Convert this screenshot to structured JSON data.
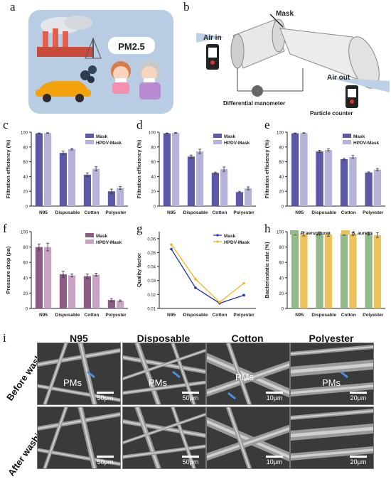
{
  "panel_labels": {
    "a": "a",
    "b": "b",
    "c": "c",
    "d": "d",
    "e": "e",
    "f": "f",
    "g": "g",
    "h": "h",
    "i": "i"
  },
  "panel_a": {
    "pm_text": "PM2.5"
  },
  "panel_b": {
    "mask": "Mask",
    "air_in": "Air in",
    "air_out": "Air out",
    "manometer": "Differential manometer",
    "counter": "Particle counter"
  },
  "categories": [
    "N95",
    "Disposable",
    "Cotton",
    "Polyester"
  ],
  "colors": {
    "mask": "#5b58a8",
    "hpdv": "#b6b3db",
    "pd_mask": "#8e5a86",
    "pd_hpdv": "#c9a3c4",
    "qf_mask": "#1f2fb0",
    "qf_hpdv": "#f2b71c",
    "pa": "#93b88a",
    "sa": "#eec25a"
  },
  "chart_data": [
    {
      "id": "c",
      "type": "bar",
      "ylabel": "Filtration efficiency  (%)",
      "ylim": [
        0,
        100
      ],
      "yticks": [
        0,
        20,
        40,
        60,
        80,
        100
      ],
      "categories": [
        "N95",
        "Disposable",
        "Cotton",
        "Polyester"
      ],
      "series": [
        {
          "name": "Mask",
          "values": [
            98.5,
            72,
            42.5,
            20
          ]
        },
        {
          "name": "HPDV-Mask",
          "values": [
            98.8,
            77,
            50.5,
            24.5
          ]
        }
      ],
      "errors": [
        [
          0.4,
          2.5,
          2.5,
          3
        ],
        [
          0.4,
          1,
          3,
          2
        ]
      ]
    },
    {
      "id": "d",
      "type": "bar",
      "ylabel": "Filtration efficiency  (%)",
      "ylim": [
        0,
        100
      ],
      "yticks": [
        0,
        20,
        40,
        60,
        80,
        100
      ],
      "categories": [
        "N95",
        "Disposable",
        "Cotton",
        "Polyester"
      ],
      "series": [
        {
          "name": "Mask",
          "values": [
            98.5,
            67,
            45,
            19
          ]
        },
        {
          "name": "HPDV-Mask",
          "values": [
            99,
            74,
            50,
            24
          ]
        }
      ],
      "errors": [
        [
          0.4,
          2,
          1,
          1
        ],
        [
          0.4,
          3,
          3,
          2
        ]
      ]
    },
    {
      "id": "e",
      "type": "bar",
      "ylabel": "Filtration efficiency  (%)",
      "ylim": [
        0,
        100
      ],
      "yticks": [
        0,
        20,
        40,
        60,
        80,
        100
      ],
      "categories": [
        "N95",
        "Disposable",
        "Cotton",
        "Polyester"
      ],
      "series": [
        {
          "name": "Mask",
          "values": [
            98.5,
            74,
            63.5,
            45.5
          ]
        },
        {
          "name": "HPDV-Mask",
          "values": [
            98.8,
            76,
            66.5,
            49.5
          ]
        }
      ],
      "errors": [
        [
          0.4,
          1.5,
          1,
          0.8
        ],
        [
          0.4,
          1.5,
          2,
          1.5
        ]
      ]
    },
    {
      "id": "f",
      "type": "bar",
      "ylabel": "Pressure drop  (pa)",
      "ylim": [
        0,
        100
      ],
      "yticks": [
        0,
        20,
        40,
        60,
        80,
        100
      ],
      "categories": [
        "N95",
        "Disposable",
        "Cotton",
        "Polyester"
      ],
      "series": [
        {
          "name": "Mask",
          "values": [
            80,
            44.5,
            42,
            11
          ]
        },
        {
          "name": "HPDV-Mask",
          "values": [
            80,
            43,
            44,
            10
          ]
        }
      ],
      "errors": [
        [
          4,
          4,
          3,
          2
        ],
        [
          5,
          2,
          2,
          1
        ]
      ]
    },
    {
      "id": "g",
      "type": "line",
      "ylabel": "Quality factor",
      "ylim": [
        0.01,
        0.065
      ],
      "yticks": [
        0.01,
        0.02,
        0.03,
        0.04,
        0.05,
        0.06
      ],
      "categories": [
        "N95",
        "Disposable",
        "Cotton",
        "Polyester"
      ],
      "series": [
        {
          "name": "Mask",
          "values": [
            0.0525,
            0.0248,
            0.0137,
            0.0195
          ]
        },
        {
          "name": "HPDV-Mask",
          "values": [
            0.0558,
            0.031,
            0.0145,
            0.028
          ]
        }
      ]
    },
    {
      "id": "h",
      "type": "bar",
      "ylabel": "Bacteriostatic rate  (%)",
      "ylim": [
        0,
        100
      ],
      "yticks": [
        0,
        20,
        40,
        60,
        80,
        100
      ],
      "categories": [
        "N95",
        "Disposable",
        "Cotton",
        "Polyester"
      ],
      "series": [
        {
          "name": "P. aeruginosa",
          "values": [
            98,
            97.5,
            97.5,
            97.5
          ]
        },
        {
          "name": "S. aureus",
          "values": [
            97,
            96.5,
            97,
            95.5
          ]
        }
      ],
      "errors": [
        [
          2,
          2,
          2,
          2
        ],
        [
          2.5,
          2.5,
          2,
          3
        ]
      ]
    }
  ],
  "panel_i": {
    "columns": [
      "N95",
      "Disposable",
      "Cotton",
      "Polyester"
    ],
    "rows": [
      "Before washing",
      "After washing"
    ],
    "pms": "PMs",
    "scale_before": [
      "50μm",
      "50μm",
      "10μm",
      "20μm"
    ],
    "scale_after": [
      "50μm",
      "50μm",
      "10μm",
      "20μm"
    ]
  }
}
